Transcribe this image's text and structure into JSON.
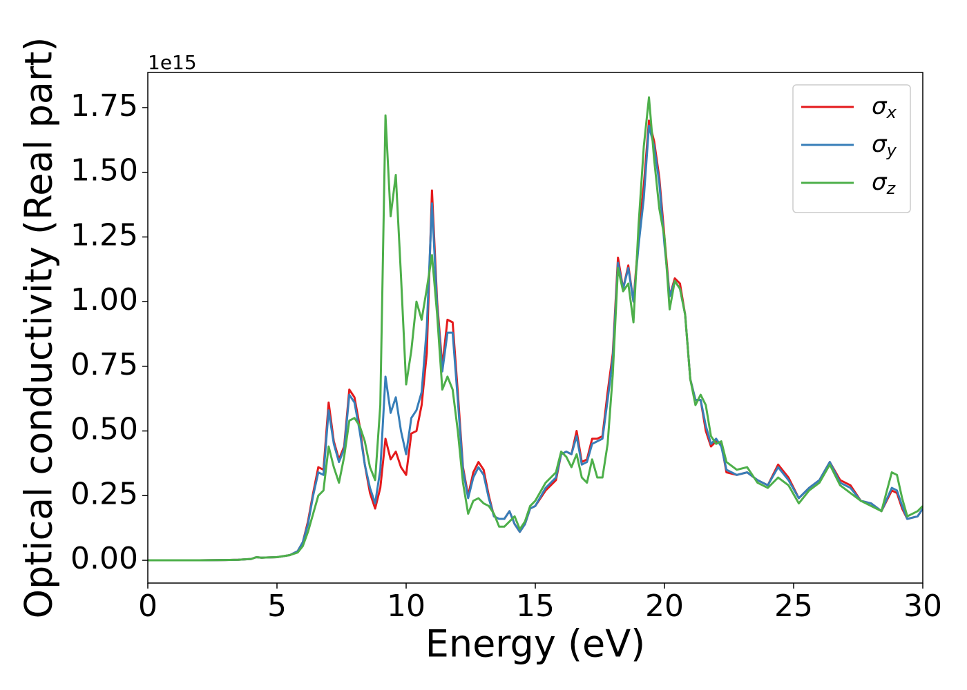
{
  "chart_data": {
    "type": "line",
    "xlabel": "Energy (eV)",
    "ylabel": "Optical conductivity (Real part)",
    "y_offset_label": "1e15",
    "x": [
      0,
      1,
      2,
      3,
      3.5,
      4,
      4.2,
      4.4,
      5,
      5.5,
      5.8,
      6.0,
      6.2,
      6.4,
      6.6,
      6.8,
      7.0,
      7.2,
      7.4,
      7.6,
      7.8,
      8.0,
      8.2,
      8.4,
      8.6,
      8.8,
      9.0,
      9.2,
      9.4,
      9.6,
      9.8,
      10.0,
      10.2,
      10.4,
      10.6,
      10.8,
      11.0,
      11.2,
      11.4,
      11.6,
      11.8,
      12.0,
      12.2,
      12.4,
      12.6,
      12.8,
      13.0,
      13.2,
      13.4,
      13.6,
      13.8,
      14.0,
      14.2,
      14.4,
      14.6,
      14.8,
      15.0,
      15.4,
      15.8,
      16.0,
      16.2,
      16.4,
      16.6,
      16.8,
      17.0,
      17.2,
      17.4,
      17.6,
      17.8,
      18.0,
      18.2,
      18.4,
      18.6,
      18.8,
      19.0,
      19.2,
      19.4,
      19.6,
      19.8,
      20.0,
      20.2,
      20.4,
      20.6,
      20.8,
      21.0,
      21.2,
      21.4,
      21.6,
      21.8,
      22.0,
      22.2,
      22.4,
      22.8,
      23.2,
      23.6,
      24.0,
      24.4,
      24.8,
      25.2,
      25.6,
      26.0,
      26.4,
      26.8,
      27.2,
      27.6,
      28.0,
      28.4,
      28.8,
      29.0,
      29.2,
      29.4,
      29.8,
      30
    ],
    "series": [
      {
        "name": "σx",
        "color": "#e41a1c",
        "values": [
          0,
          0,
          0,
          0.001,
          0.002,
          0.005,
          0.012,
          0.01,
          0.012,
          0.02,
          0.035,
          0.07,
          0.15,
          0.26,
          0.36,
          0.35,
          0.61,
          0.46,
          0.39,
          0.44,
          0.66,
          0.63,
          0.52,
          0.37,
          0.26,
          0.2,
          0.28,
          0.47,
          0.39,
          0.42,
          0.36,
          0.33,
          0.49,
          0.5,
          0.6,
          0.8,
          1.43,
          1.0,
          0.75,
          0.93,
          0.92,
          0.65,
          0.36,
          0.25,
          0.34,
          0.38,
          0.35,
          0.25,
          0.17,
          0.16,
          0.16,
          0.19,
          0.14,
          0.11,
          0.14,
          0.2,
          0.21,
          0.27,
          0.31,
          0.41,
          0.42,
          0.41,
          0.5,
          0.38,
          0.39,
          0.47,
          0.47,
          0.48,
          0.65,
          0.8,
          1.17,
          1.05,
          1.14,
          1.0,
          1.25,
          1.45,
          1.7,
          1.62,
          1.48,
          1.25,
          1.02,
          1.09,
          1.07,
          0.95,
          0.7,
          0.62,
          0.62,
          0.5,
          0.44,
          0.46,
          0.45,
          0.34,
          0.33,
          0.34,
          0.31,
          0.29,
          0.37,
          0.32,
          0.24,
          0.28,
          0.31,
          0.38,
          0.31,
          0.29,
          0.23,
          0.22,
          0.19,
          0.27,
          0.26,
          0.2,
          0.16,
          0.17,
          0.2
        ]
      },
      {
        "name": "σy",
        "color": "#377eb8",
        "values": [
          0,
          0,
          0,
          0.001,
          0.002,
          0.005,
          0.012,
          0.01,
          0.012,
          0.02,
          0.035,
          0.07,
          0.14,
          0.25,
          0.34,
          0.33,
          0.58,
          0.45,
          0.38,
          0.43,
          0.64,
          0.61,
          0.5,
          0.37,
          0.28,
          0.22,
          0.35,
          0.71,
          0.57,
          0.63,
          0.5,
          0.41,
          0.55,
          0.58,
          0.65,
          0.9,
          1.38,
          0.98,
          0.73,
          0.88,
          0.88,
          0.62,
          0.35,
          0.24,
          0.32,
          0.36,
          0.33,
          0.24,
          0.17,
          0.16,
          0.16,
          0.19,
          0.14,
          0.11,
          0.14,
          0.2,
          0.21,
          0.28,
          0.32,
          0.41,
          0.42,
          0.41,
          0.48,
          0.37,
          0.38,
          0.45,
          0.46,
          0.47,
          0.62,
          0.78,
          1.15,
          1.05,
          1.13,
          1.0,
          1.22,
          1.4,
          1.68,
          1.6,
          1.46,
          1.22,
          1.02,
          1.08,
          1.05,
          0.95,
          0.7,
          0.62,
          0.62,
          0.52,
          0.45,
          0.47,
          0.44,
          0.35,
          0.33,
          0.34,
          0.31,
          0.29,
          0.36,
          0.31,
          0.24,
          0.28,
          0.31,
          0.38,
          0.3,
          0.28,
          0.23,
          0.22,
          0.19,
          0.28,
          0.27,
          0.21,
          0.16,
          0.17,
          0.2
        ]
      },
      {
        "name": "σz",
        "color": "#4daf4a",
        "values": [
          0,
          0,
          0,
          0.001,
          0.002,
          0.005,
          0.012,
          0.01,
          0.012,
          0.02,
          0.03,
          0.055,
          0.11,
          0.18,
          0.25,
          0.27,
          0.44,
          0.36,
          0.3,
          0.4,
          0.54,
          0.55,
          0.52,
          0.46,
          0.36,
          0.31,
          0.6,
          1.72,
          1.33,
          1.49,
          1.1,
          0.68,
          0.81,
          1.0,
          0.93,
          1.05,
          1.18,
          0.95,
          0.66,
          0.71,
          0.66,
          0.5,
          0.3,
          0.18,
          0.23,
          0.24,
          0.22,
          0.21,
          0.18,
          0.13,
          0.13,
          0.15,
          0.17,
          0.12,
          0.15,
          0.21,
          0.23,
          0.3,
          0.34,
          0.42,
          0.4,
          0.36,
          0.41,
          0.32,
          0.3,
          0.39,
          0.32,
          0.32,
          0.45,
          0.72,
          1.13,
          1.04,
          1.07,
          0.92,
          1.3,
          1.6,
          1.79,
          1.55,
          1.36,
          1.25,
          0.97,
          1.08,
          1.05,
          0.95,
          0.7,
          0.6,
          0.64,
          0.6,
          0.48,
          0.45,
          0.46,
          0.38,
          0.35,
          0.36,
          0.3,
          0.28,
          0.32,
          0.29,
          0.22,
          0.27,
          0.3,
          0.37,
          0.29,
          0.26,
          0.23,
          0.21,
          0.19,
          0.34,
          0.33,
          0.24,
          0.17,
          0.19,
          0.21
        ]
      }
    ],
    "xlim": [
      0,
      30
    ],
    "xticks": [
      0,
      5,
      10,
      15,
      20,
      25,
      30
    ],
    "ylim": [
      -0.088,
      1.886
    ],
    "yticks": [
      {
        "value": 0,
        "label": "0.00"
      },
      {
        "value": 0.25,
        "label": "0.25"
      },
      {
        "value": 0.5,
        "label": "0.50"
      },
      {
        "value": 0.75,
        "label": "0.75"
      },
      {
        "value": 1,
        "label": "1.00"
      },
      {
        "value": 1.25,
        "label": "1.25"
      },
      {
        "value": 1.5,
        "label": "1.50"
      },
      {
        "value": 1.75,
        "label": "1.75"
      }
    ],
    "legend": "upper right"
  }
}
